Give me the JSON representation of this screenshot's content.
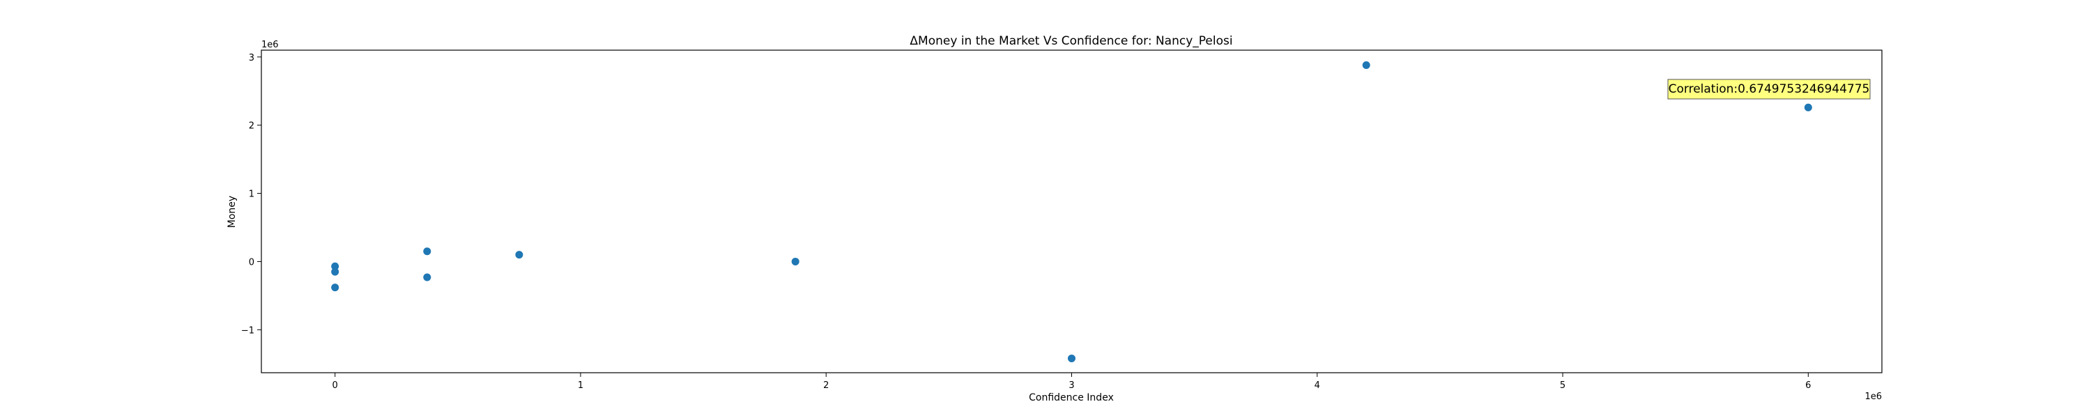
{
  "chart_data": {
    "type": "scatter",
    "title": "ΔMoney in the Market Vs Confidence for: Nancy_Pelosi",
    "xlabel": "Confidence Index",
    "ylabel": "Money",
    "x_offset_label": "1e6",
    "y_offset_label": "1e6",
    "xlim": [
      -0.3,
      6.3
    ],
    "ylim": [
      -1.63,
      3.1
    ],
    "x_ticks": [
      {
        "value": 0,
        "label": "0"
      },
      {
        "value": 1,
        "label": "1"
      },
      {
        "value": 2,
        "label": "2"
      },
      {
        "value": 3,
        "label": "3"
      },
      {
        "value": 4,
        "label": "4"
      },
      {
        "value": 5,
        "label": "5"
      },
      {
        "value": 6,
        "label": "6"
      }
    ],
    "y_ticks": [
      {
        "value": -1,
        "label": "−1"
      },
      {
        "value": 0,
        "label": "0"
      },
      {
        "value": 1,
        "label": "1"
      },
      {
        "value": 2,
        "label": "2"
      },
      {
        "value": 3,
        "label": "3"
      }
    ],
    "points": [
      {
        "x": 0.0,
        "y": -0.07
      },
      {
        "x": 0.0,
        "y": -0.15
      },
      {
        "x": 0.0,
        "y": -0.38
      },
      {
        "x": 0.375,
        "y": 0.15
      },
      {
        "x": 0.375,
        "y": -0.23
      },
      {
        "x": 0.75,
        "y": 0.1
      },
      {
        "x": 1.875,
        "y": 0.0
      },
      {
        "x": 3.0,
        "y": -1.42
      },
      {
        "x": 4.2,
        "y": 2.88
      },
      {
        "x": 6.0,
        "y": 2.26
      }
    ],
    "annotation": "Correlation:0.6749753246944775",
    "grid": false,
    "marker_color": "#1f77b4",
    "annotation_bg": "#ffff80"
  }
}
